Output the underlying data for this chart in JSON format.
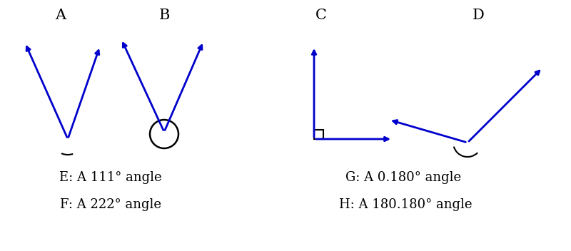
{
  "bg_color": "#ffffff",
  "arrow_color": "#0000cc",
  "angle_color": "#000000",
  "label_A": "A",
  "label_B": "B",
  "label_C": "C",
  "label_D": "D",
  "text_E": "E: A 111° angle",
  "text_F": "F: A 222° angle",
  "text_G": "G: A 0.180° angle",
  "text_H": "H: A 180.180° angle",
  "label_fontsize": 15,
  "text_fontsize": 13
}
